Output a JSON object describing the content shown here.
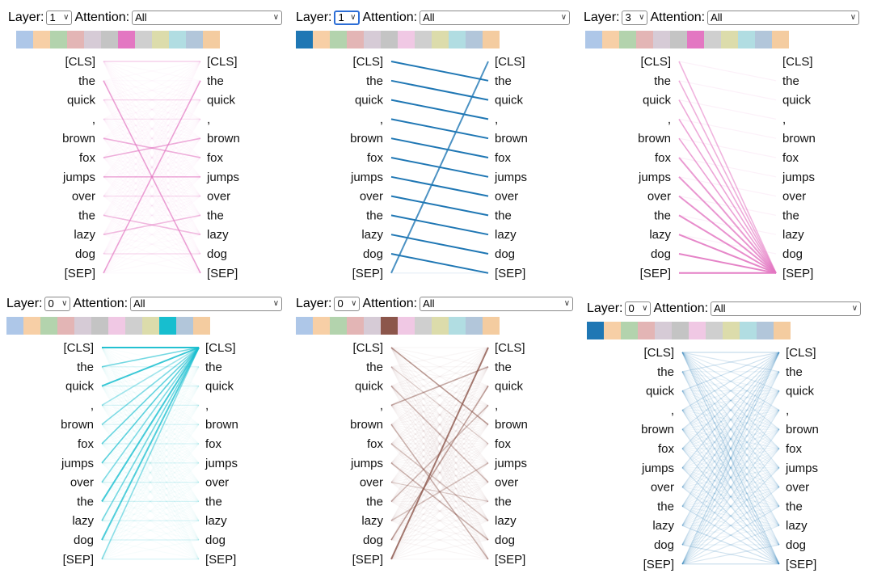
{
  "tokens": [
    "[CLS]",
    "the",
    "quick",
    ",",
    "brown",
    "fox",
    "jumps",
    "over",
    "the",
    "lazy",
    "dog",
    "[SEP]"
  ],
  "labels": {
    "layer": "Layer:",
    "attention": "Attention:"
  },
  "palette": [
    "#aec7e8",
    "#f7cfa6",
    "#b3d3ad",
    "#e3b5b5",
    "#d6cbd6",
    "#c4c4c4",
    "#f0c8e4",
    "#cfcfcf",
    "#dcdcab",
    "#b1dde2",
    "#b2c6da",
    "#f4cca0"
  ],
  "panels": [
    {
      "layer": "1",
      "attention": "All",
      "selected_head": 6,
      "head_color": "#e377c2",
      "pattern": "offset",
      "strength": "moderate"
    },
    {
      "layer": "1",
      "attention": "All",
      "selected_head": 0,
      "head_color": "#1f77b4",
      "pattern": "next-token",
      "strength": "strong"
    },
    {
      "layer": "3",
      "attention": "All",
      "selected_head": 6,
      "head_color": "#e377c2",
      "pattern": "to-sep",
      "strength": "strong"
    },
    {
      "layer": "0",
      "attention": "All",
      "selected_head": 9,
      "head_color": "#17becf",
      "pattern": "to-cls",
      "strength": "strong"
    },
    {
      "layer": "0",
      "attention": "All",
      "selected_head": 5,
      "head_color": "#8c564b",
      "pattern": "scattered",
      "strength": "moderate"
    },
    {
      "layer": "0",
      "attention": "All",
      "selected_head": 0,
      "head_color": "#1f77b4",
      "pattern": "broad",
      "strength": "diffuse"
    }
  ]
}
